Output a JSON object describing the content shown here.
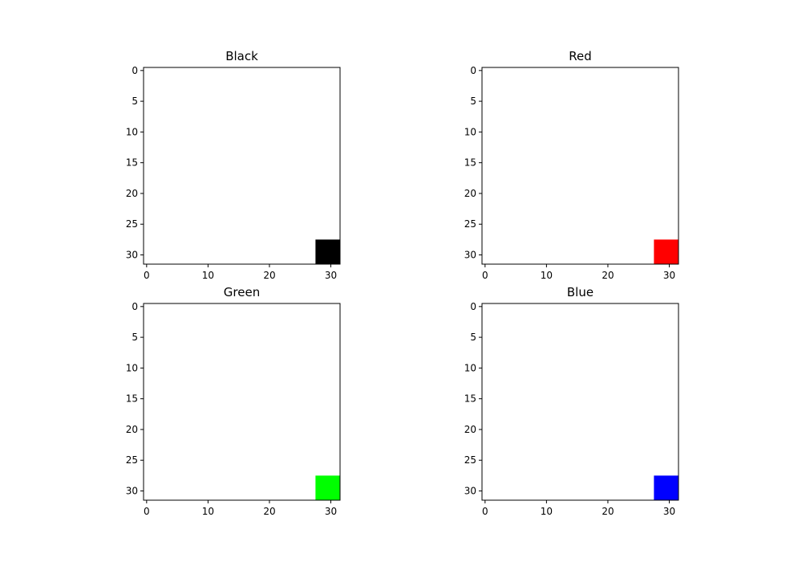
{
  "chart_data": [
    {
      "type": "heatmap",
      "title": "Black",
      "grid_size": [
        32,
        32
      ],
      "background_color": "#ffffff",
      "block": {
        "x_range": [
          28,
          31
        ],
        "y_range": [
          28,
          31
        ],
        "color": "#000000"
      },
      "xlim": [
        -0.5,
        31.5
      ],
      "ylim": [
        31.5,
        -0.5
      ],
      "xticks": [
        0,
        10,
        20,
        30
      ],
      "yticks": [
        0,
        5,
        10,
        15,
        20,
        25,
        30
      ],
      "grid": false
    },
    {
      "type": "heatmap",
      "title": "Red",
      "grid_size": [
        32,
        32
      ],
      "background_color": "#ffffff",
      "block": {
        "x_range": [
          28,
          31
        ],
        "y_range": [
          28,
          31
        ],
        "color": "#ff0000"
      },
      "xlim": [
        -0.5,
        31.5
      ],
      "ylim": [
        31.5,
        -0.5
      ],
      "xticks": [
        0,
        10,
        20,
        30
      ],
      "yticks": [
        0,
        5,
        10,
        15,
        20,
        25,
        30
      ],
      "grid": false
    },
    {
      "type": "heatmap",
      "title": "Green",
      "grid_size": [
        32,
        32
      ],
      "background_color": "#ffffff",
      "block": {
        "x_range": [
          28,
          31
        ],
        "y_range": [
          28,
          31
        ],
        "color": "#00ff00"
      },
      "xlim": [
        -0.5,
        31.5
      ],
      "ylim": [
        31.5,
        -0.5
      ],
      "xticks": [
        0,
        10,
        20,
        30
      ],
      "yticks": [
        0,
        5,
        10,
        15,
        20,
        25,
        30
      ],
      "grid": false
    },
    {
      "type": "heatmap",
      "title": "Blue",
      "grid_size": [
        32,
        32
      ],
      "background_color": "#ffffff",
      "block": {
        "x_range": [
          28,
          31
        ],
        "y_range": [
          28,
          31
        ],
        "color": "#0000ff"
      },
      "xlim": [
        -0.5,
        31.5
      ],
      "ylim": [
        31.5,
        -0.5
      ],
      "xticks": [
        0,
        10,
        20,
        30
      ],
      "yticks": [
        0,
        5,
        10,
        15,
        20,
        25,
        30
      ],
      "grid": false
    }
  ]
}
